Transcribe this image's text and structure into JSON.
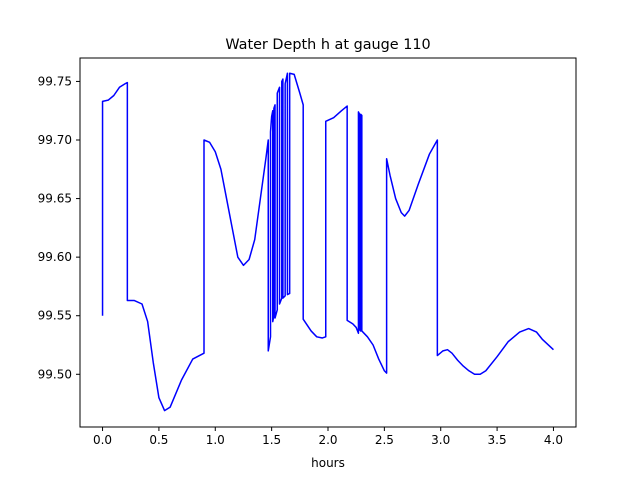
{
  "chart_data": {
    "type": "line",
    "title": "Water Depth h at gauge 110",
    "xlabel": "hours",
    "ylabel": "",
    "xlim": [
      -0.2,
      4.2
    ],
    "ylim": [
      99.455,
      99.77
    ],
    "xticks": [
      0.0,
      0.5,
      1.0,
      1.5,
      2.0,
      2.5,
      3.0,
      3.5,
      4.0
    ],
    "xtick_labels": [
      "0.0",
      "0.5",
      "1.0",
      "1.5",
      "2.0",
      "2.5",
      "3.0",
      "3.5",
      "4.0"
    ],
    "yticks": [
      99.5,
      99.55,
      99.6,
      99.65,
      99.7,
      99.75
    ],
    "ytick_labels": [
      "99.50",
      "99.55",
      "99.60",
      "99.65",
      "99.70",
      "99.75"
    ],
    "grid": false,
    "series": [
      {
        "color": "#0000ff",
        "points": [
          [
            0.0,
            99.55
          ],
          [
            0.0,
            99.733
          ],
          [
            0.05,
            99.734
          ],
          [
            0.1,
            99.738
          ],
          [
            0.15,
            99.745
          ],
          [
            0.2,
            99.748
          ],
          [
            0.22,
            99.749
          ],
          [
            0.22,
            99.563
          ],
          [
            0.28,
            99.563
          ],
          [
            0.35,
            99.56
          ],
          [
            0.4,
            99.545
          ],
          [
            0.45,
            99.51
          ],
          [
            0.5,
            99.48
          ],
          [
            0.55,
            99.469
          ],
          [
            0.6,
            99.472
          ],
          [
            0.7,
            99.495
          ],
          [
            0.8,
            99.513
          ],
          [
            0.9,
            99.518
          ],
          [
            0.9,
            99.7
          ],
          [
            0.95,
            99.698
          ],
          [
            1.0,
            99.69
          ],
          [
            1.05,
            99.675
          ],
          [
            1.1,
            99.65
          ],
          [
            1.15,
            99.625
          ],
          [
            1.2,
            99.6
          ],
          [
            1.25,
            99.593
          ],
          [
            1.3,
            99.598
          ],
          [
            1.35,
            99.615
          ],
          [
            1.4,
            99.65
          ],
          [
            1.45,
            99.685
          ],
          [
            1.47,
            99.7
          ],
          [
            1.47,
            99.52
          ],
          [
            1.49,
            99.532
          ],
          [
            1.49,
            99.707
          ],
          [
            1.5,
            99.72
          ],
          [
            1.51,
            99.725
          ],
          [
            1.51,
            99.545
          ],
          [
            1.52,
            99.55
          ],
          [
            1.52,
            99.727
          ],
          [
            1.53,
            99.73
          ],
          [
            1.53,
            99.548
          ],
          [
            1.55,
            99.555
          ],
          [
            1.55,
            99.74
          ],
          [
            1.57,
            99.745
          ],
          [
            1.57,
            99.56
          ],
          [
            1.59,
            99.565
          ],
          [
            1.59,
            99.75
          ],
          [
            1.6,
            99.752
          ],
          [
            1.6,
            99.565
          ],
          [
            1.62,
            99.567
          ],
          [
            1.62,
            99.748
          ],
          [
            1.64,
            99.757
          ],
          [
            1.64,
            99.568
          ],
          [
            1.66,
            99.569
          ],
          [
            1.66,
            99.757
          ],
          [
            1.7,
            99.756
          ],
          [
            1.75,
            99.74
          ],
          [
            1.78,
            99.73
          ],
          [
            1.78,
            99.547
          ],
          [
            1.85,
            99.537
          ],
          [
            1.9,
            99.532
          ],
          [
            1.95,
            99.531
          ],
          [
            1.98,
            99.532
          ],
          [
            1.98,
            99.716
          ],
          [
            2.05,
            99.719
          ],
          [
            2.12,
            99.725
          ],
          [
            2.17,
            99.729
          ],
          [
            2.17,
            99.546
          ],
          [
            2.22,
            99.543
          ],
          [
            2.25,
            99.54
          ],
          [
            2.27,
            99.535
          ],
          [
            2.27,
            99.724
          ],
          [
            2.28,
            99.722
          ],
          [
            2.28,
            99.538
          ],
          [
            2.29,
            99.537
          ],
          [
            2.29,
            99.722
          ],
          [
            2.3,
            99.721
          ],
          [
            2.3,
            99.537
          ],
          [
            2.35,
            99.532
          ],
          [
            2.4,
            99.525
          ],
          [
            2.45,
            99.513
          ],
          [
            2.5,
            99.503
          ],
          [
            2.52,
            99.501
          ],
          [
            2.52,
            99.684
          ],
          [
            2.55,
            99.67
          ],
          [
            2.6,
            99.65
          ],
          [
            2.65,
            99.638
          ],
          [
            2.68,
            99.635
          ],
          [
            2.72,
            99.64
          ],
          [
            2.8,
            99.662
          ],
          [
            2.9,
            99.688
          ],
          [
            2.97,
            99.7
          ],
          [
            2.97,
            99.516
          ],
          [
            3.02,
            99.52
          ],
          [
            3.06,
            99.521
          ],
          [
            3.1,
            99.518
          ],
          [
            3.15,
            99.512
          ],
          [
            3.2,
            99.507
          ],
          [
            3.25,
            99.503
          ],
          [
            3.3,
            99.5
          ],
          [
            3.35,
            99.5
          ],
          [
            3.4,
            99.503
          ],
          [
            3.5,
            99.515
          ],
          [
            3.6,
            99.528
          ],
          [
            3.7,
            99.536
          ],
          [
            3.78,
            99.539
          ],
          [
            3.85,
            99.536
          ],
          [
            3.9,
            99.53
          ],
          [
            4.0,
            99.521
          ]
        ]
      }
    ]
  }
}
